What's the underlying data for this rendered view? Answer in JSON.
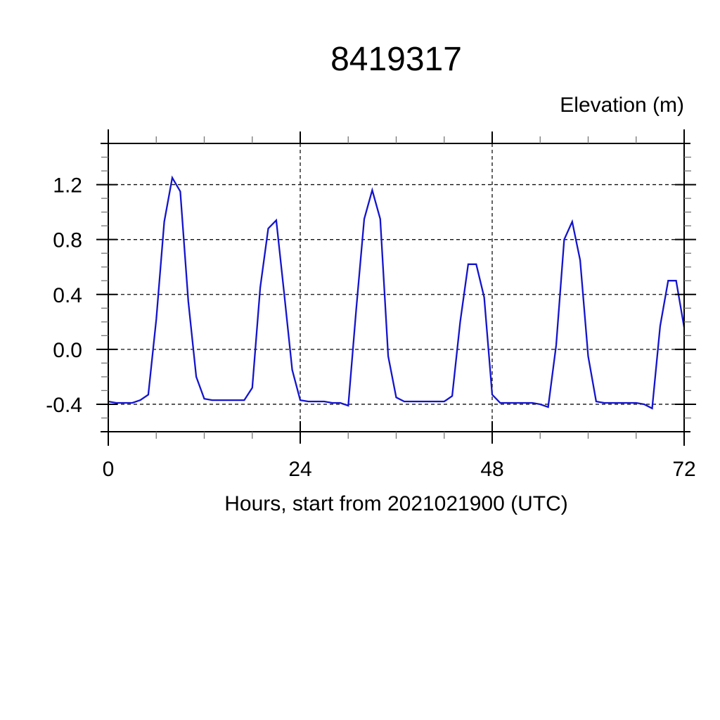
{
  "figure": {
    "title": "8419317",
    "elevation_header": "Elevation (m)",
    "x_axis_label": "Hours, start from 2021021900 (UTC)"
  },
  "chart_data": {
    "type": "line",
    "title": "8419317",
    "ylabel": "Elevation (m)",
    "xlabel": "Hours, start from 2021021900 (UTC)",
    "x_units": "hours",
    "xlim": [
      0,
      72
    ],
    "ylim": [
      -0.6,
      1.5
    ],
    "xticks": [
      0,
      24,
      48,
      72
    ],
    "xticklabels": [
      "0",
      "24",
      "48",
      "72"
    ],
    "xminor_interval": 6,
    "yticks": [
      -0.4,
      0.0,
      0.4,
      0.8,
      1.2
    ],
    "yticklabels": [
      "-0.4",
      "0.0",
      "0.4",
      "0.8",
      "1.2"
    ],
    "yminor_interval": 0.1,
    "grid_horizontal_at": [
      -0.4,
      0.0,
      0.4,
      0.8,
      1.2
    ],
    "grid_vertical_at": [
      24,
      48
    ],
    "grid_style": "dashed",
    "legend_position": "none",
    "line_color": "#1414cd",
    "series": [
      {
        "name": "elevation_m",
        "x_start": 0,
        "x_step": 1,
        "values": [
          -0.38,
          -0.39,
          -0.39,
          -0.39,
          -0.37,
          -0.33,
          0.22,
          0.93,
          1.25,
          1.15,
          0.35,
          -0.2,
          -0.36,
          -0.37,
          -0.37,
          -0.37,
          -0.37,
          -0.37,
          -0.28,
          0.45,
          0.88,
          0.94,
          0.4,
          -0.15,
          -0.37,
          -0.38,
          -0.38,
          -0.38,
          -0.39,
          -0.39,
          -0.41,
          0.29,
          0.95,
          1.16,
          0.95,
          -0.05,
          -0.35,
          -0.38,
          -0.38,
          -0.38,
          -0.38,
          -0.38,
          -0.38,
          -0.34,
          0.2,
          0.62,
          0.62,
          0.38,
          -0.33,
          -0.39,
          -0.39,
          -0.39,
          -0.39,
          -0.39,
          -0.4,
          -0.42,
          0.03,
          0.8,
          0.93,
          0.65,
          -0.05,
          -0.38,
          -0.39,
          -0.39,
          -0.39,
          -0.39,
          -0.39,
          -0.4,
          -0.43,
          0.17,
          0.5,
          0.5,
          0.16
        ]
      }
    ]
  }
}
